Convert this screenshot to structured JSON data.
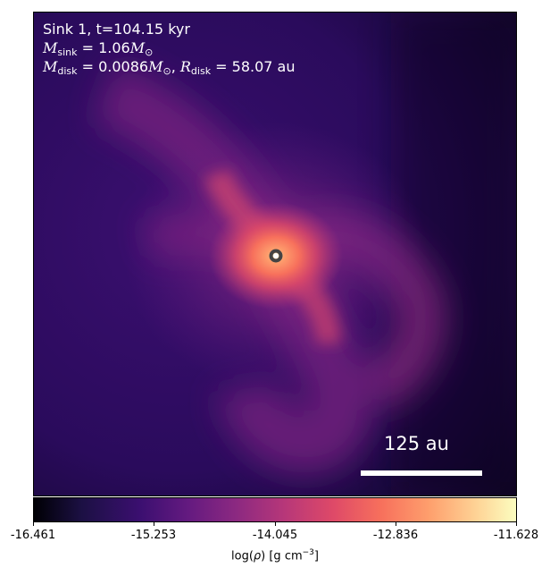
{
  "annotation": {
    "line1": "Sink 1, t=104.15 kyr",
    "sink_symbol": "M",
    "sink_sub": "sink",
    "sink_value": " = 1.06",
    "msun_symbol": "M",
    "msun_sub": "⊙",
    "disk_mass_symbol": "M",
    "disk_mass_sub": "disk",
    "disk_mass_value": " = 0.0086",
    "disk_msun_symbol": "M",
    "disk_msun_sub": "⊙",
    "comma": ", ",
    "disk_radius_symbol": "R",
    "disk_radius_sub": "disk",
    "disk_radius_value": " = 58.07",
    "disk_radius_unit": " au"
  },
  "scale_bar": {
    "label": "125 au"
  },
  "colorbar": {
    "ticks": [
      "-16.461",
      "-15.253",
      "-14.045",
      "-12.836",
      "-11.628"
    ],
    "label_prefix": "log(",
    "label_rho": "ρ",
    "label_mid": ") [g cm",
    "label_exp": "−3",
    "label_suffix": "]",
    "colormap": "inferno"
  },
  "colors": {
    "background_dark": "#1a0a3a",
    "core": "#fcfdbf",
    "sink_marker": "#ffffff"
  }
}
